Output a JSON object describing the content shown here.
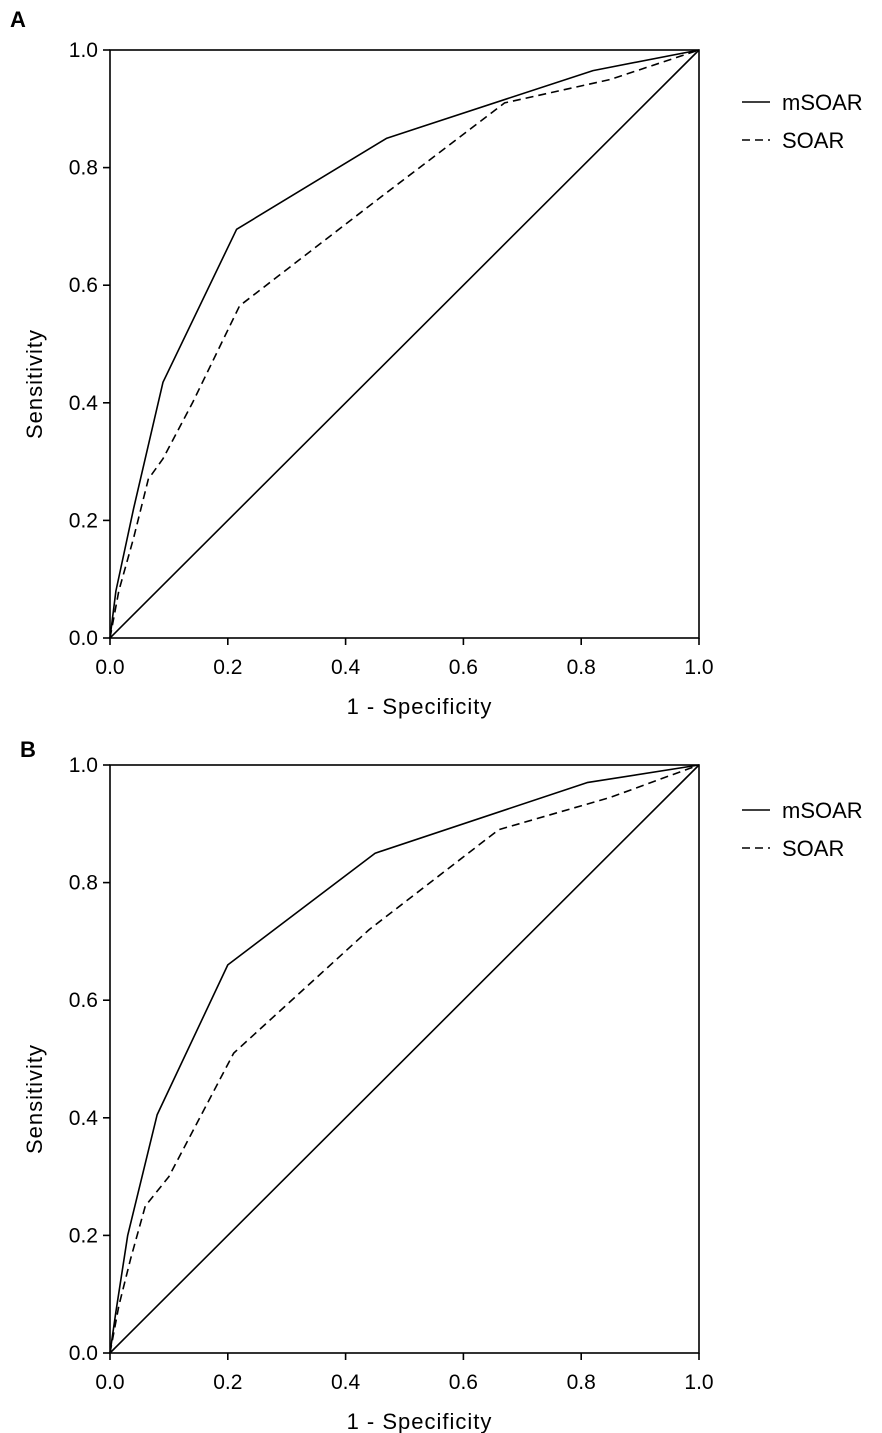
{
  "chart_data": [
    {
      "panel_label": "A",
      "type": "line",
      "xlabel": "1 - Specificity",
      "ylabel": "Sensitivity",
      "xlim": [
        0,
        1
      ],
      "ylim": [
        0,
        1
      ],
      "xticks": [
        "0.0",
        "0.2",
        "0.4",
        "0.6",
        "0.8",
        "1.0"
      ],
      "yticks": [
        "0.0",
        "0.2",
        "0.4",
        "0.6",
        "0.8",
        "1.0"
      ],
      "grid": false,
      "legend_position": "right",
      "series": [
        {
          "name": "mSOAR",
          "style": "solid",
          "points": [
            [
              0,
              0
            ],
            [
              0.01,
              0.08
            ],
            [
              0.04,
              0.22
            ],
            [
              0.09,
              0.435
            ],
            [
              0.215,
              0.695
            ],
            [
              0.47,
              0.85
            ],
            [
              0.82,
              0.965
            ],
            [
              1,
              1
            ]
          ]
        },
        {
          "name": "SOAR",
          "style": "dashed",
          "points": [
            [
              0,
              0
            ],
            [
              0.015,
              0.08
            ],
            [
              0.04,
              0.17
            ],
            [
              0.065,
              0.27
            ],
            [
              0.09,
              0.305
            ],
            [
              0.14,
              0.4
            ],
            [
              0.22,
              0.565
            ],
            [
              0.46,
              0.75
            ],
            [
              0.67,
              0.91
            ],
            [
              0.85,
              0.95
            ],
            [
              1,
              1
            ]
          ]
        },
        {
          "name": "",
          "style": "diagonal",
          "points": [
            [
              0,
              0
            ],
            [
              1,
              1
            ]
          ]
        }
      ]
    },
    {
      "panel_label": "B",
      "type": "line",
      "xlabel": "1 - Specificity",
      "ylabel": "Sensitivity",
      "xlim": [
        0,
        1
      ],
      "ylim": [
        0,
        1
      ],
      "xticks": [
        "0.0",
        "0.2",
        "0.4",
        "0.6",
        "0.8",
        "1.0"
      ],
      "yticks": [
        "0.0",
        "0.2",
        "0.4",
        "0.6",
        "0.8",
        "1.0"
      ],
      "grid": false,
      "legend_position": "right",
      "series": [
        {
          "name": "mSOAR",
          "style": "solid",
          "points": [
            [
              0,
              0
            ],
            [
              0.01,
              0.07
            ],
            [
              0.03,
              0.2
            ],
            [
              0.08,
              0.405
            ],
            [
              0.2,
              0.66
            ],
            [
              0.45,
              0.85
            ],
            [
              0.81,
              0.97
            ],
            [
              1,
              1
            ]
          ]
        },
        {
          "name": "SOAR",
          "style": "dashed",
          "points": [
            [
              0,
              0
            ],
            [
              0.015,
              0.08
            ],
            [
              0.035,
              0.16
            ],
            [
              0.06,
              0.25
            ],
            [
              0.1,
              0.3
            ],
            [
              0.21,
              0.51
            ],
            [
              0.44,
              0.72
            ],
            [
              0.66,
              0.89
            ],
            [
              0.85,
              0.945
            ],
            [
              1,
              1
            ]
          ]
        },
        {
          "name": "",
          "style": "diagonal",
          "points": [
            [
              0,
              0
            ],
            [
              1,
              1
            ]
          ]
        }
      ]
    }
  ]
}
